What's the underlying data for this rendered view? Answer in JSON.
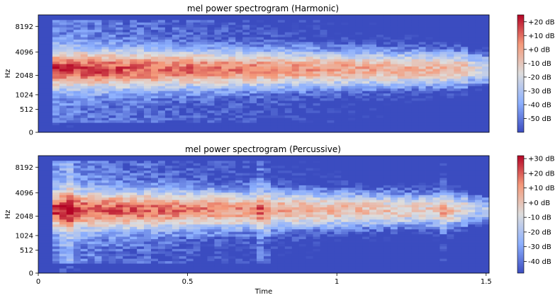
{
  "chart_data": [
    {
      "type": "heatmap",
      "title": "mel power spectrogram (Harmonic)",
      "xlabel": "",
      "ylabel": "Hz",
      "y_scale": "mel",
      "xlim": [
        0,
        1.51
      ],
      "ylim": [
        0,
        11025
      ],
      "yticks": [
        0,
        512,
        1024,
        2048,
        4096,
        8192
      ],
      "x_tick_labels_shown": false,
      "colormap": "coolwarm",
      "colorbar": {
        "range": [
          -60,
          25
        ],
        "ticks": [
          "+20 dB",
          "+10 dB",
          "+0 dB",
          "-10 dB",
          "-20 dB",
          "-30 dB",
          "-40 dB",
          "-50 dB"
        ],
        "tick_values": [
          20,
          10,
          0,
          -10,
          -20,
          -30,
          -40,
          -50
        ]
      },
      "features": {
        "onset_time": 0.05,
        "end_time": 1.51,
        "peak_band_hz": [
          2000,
          3000
        ],
        "peak_db": 18
      }
    },
    {
      "type": "heatmap",
      "title": "mel power spectrogram (Percussive)",
      "xlabel": "Time",
      "ylabel": "Hz",
      "y_scale": "mel",
      "xlim": [
        0,
        1.51
      ],
      "ylim": [
        0,
        11025
      ],
      "xticks": [
        "0",
        "0.5",
        "1",
        "1.5"
      ],
      "xtick_values": [
        0,
        0.5,
        1,
        1.5
      ],
      "yticks": [
        0,
        512,
        1024,
        2048,
        4096,
        8192
      ],
      "colormap": "coolwarm",
      "colorbar": {
        "range": [
          -48,
          32
        ],
        "ticks": [
          "+30 dB",
          "+20 dB",
          "+10 dB",
          "+0 dB",
          "-10 dB",
          "-20 dB",
          "-30 dB",
          "-40 dB"
        ],
        "tick_values": [
          30,
          20,
          10,
          0,
          -10,
          -20,
          -30,
          -40
        ]
      },
      "features": {
        "onset_time": 0.05,
        "transient_times": [
          0.1,
          0.75,
          1.36
        ],
        "end_time": 1.51,
        "peak_band_hz": [
          1800,
          3200
        ],
        "peak_db": 25
      }
    }
  ]
}
